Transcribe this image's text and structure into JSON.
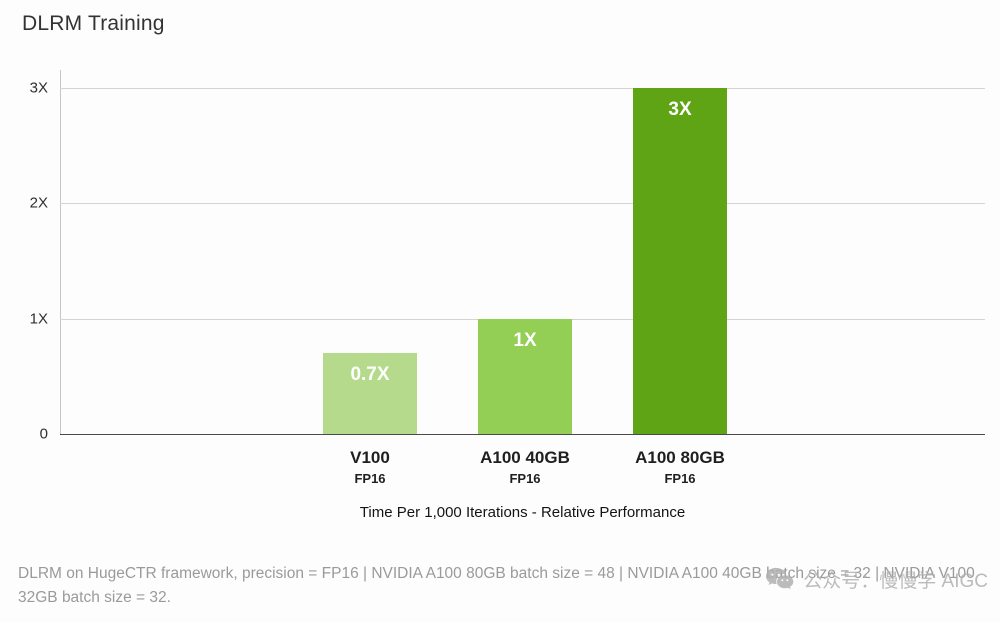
{
  "chart_data": {
    "type": "bar",
    "title": "DLRM Training",
    "categories": [
      "V100",
      "A100 40GB",
      "A100 80GB"
    ],
    "category_sublabels": [
      "FP16",
      "FP16",
      "FP16"
    ],
    "values": [
      0.7,
      1,
      3
    ],
    "bar_value_labels": [
      "0.7X",
      "1X",
      "3X"
    ],
    "bar_colors": [
      "#b5da8c",
      "#93ce55",
      "#5fa414"
    ],
    "bar_label_color": "#ffffff",
    "xlabel": "Time Per 1,000 Iterations - Relative Performance",
    "ylabel": "",
    "ylim": [
      0,
      3
    ],
    "yticks": [
      {
        "label": "0",
        "value": 0
      },
      {
        "label": "1X",
        "value": 1
      },
      {
        "label": "2X",
        "value": 2
      },
      {
        "label": "3X",
        "value": 3
      }
    ],
    "grid": true,
    "legend": false
  },
  "footnote": "DLRM on HugeCTR framework, precision = FP16 | NVIDIA A100 80GB batch size = 48 | NVIDIA A100 40GB batch size = 32 | NVIDIA V100 32GB batch size = 32.",
  "watermark": {
    "icon": "wechat-icon",
    "text": "公众号：慢慢学 AIGC",
    "color": "#b0b0b0"
  }
}
